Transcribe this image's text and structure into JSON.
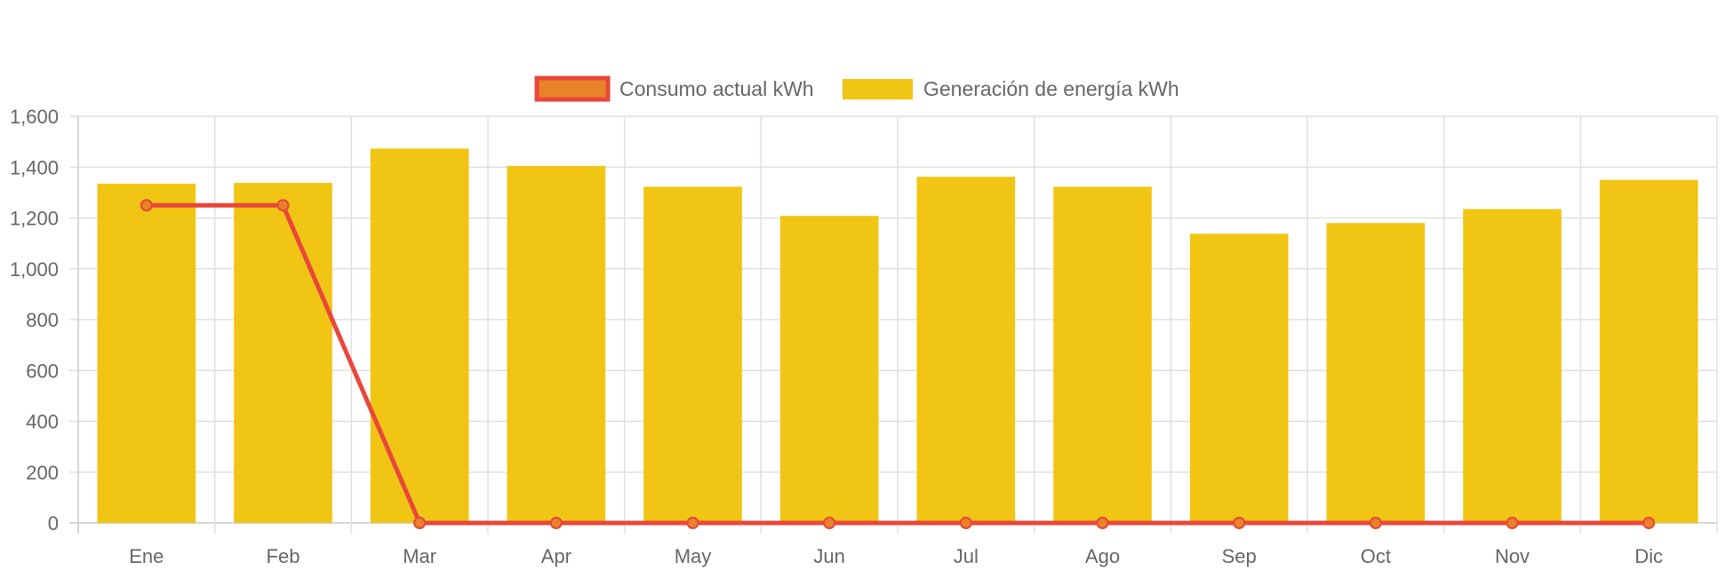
{
  "chart_data": {
    "type": "bar",
    "categories": [
      "Ene",
      "Feb",
      "Mar",
      "Apr",
      "May",
      "Jun",
      "Jul",
      "Ago",
      "Sep",
      "Oct",
      "Nov",
      "Dic"
    ],
    "series": [
      {
        "name": "Consumo actual kWh",
        "type": "line",
        "color": "#e8473a",
        "point_color": "#e8832a",
        "values": [
          1250,
          1250,
          0,
          0,
          0,
          0,
          0,
          0,
          0,
          0,
          0,
          0
        ]
      },
      {
        "name": "Generación de energía kWh",
        "type": "bar",
        "color": "#f0c514",
        "values": [
          1335,
          1338,
          1473,
          1405,
          1323,
          1208,
          1362,
          1323,
          1138,
          1180,
          1235,
          1350
        ]
      }
    ],
    "y_ticks": [
      "0",
      "200",
      "400",
      "600",
      "800",
      "1,000",
      "1,200",
      "1,400",
      "1,600"
    ],
    "ylim": [
      0,
      1600
    ],
    "grid": true,
    "legend_position": "top-center"
  }
}
